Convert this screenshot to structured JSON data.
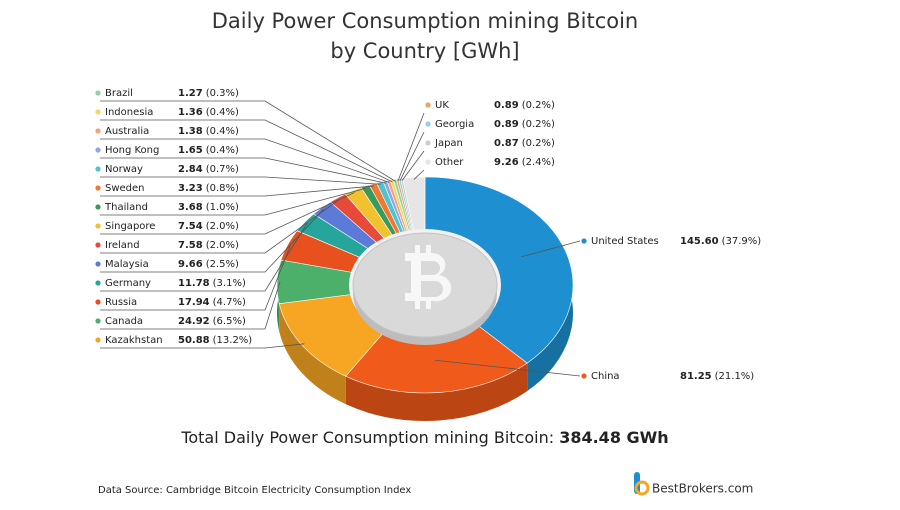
{
  "chart_data": {
    "type": "pie3d",
    "title": "Daily Power Consumption mining Bitcoin",
    "subtitle": "by Country [GWh]",
    "categories": [
      "United States",
      "China",
      "Kazakhstan",
      "Canada",
      "Russia",
      "Germany",
      "Malaysia",
      "Ireland",
      "Singapore",
      "Thailand",
      "Sweden",
      "Norway",
      "Hong Kong",
      "Australia",
      "Indonesia",
      "Brazil",
      "UK",
      "Georgia",
      "Japan",
      "Other"
    ],
    "values": [
      145.6,
      81.25,
      50.88,
      24.92,
      17.94,
      11.78,
      9.66,
      7.58,
      7.54,
      3.68,
      3.23,
      2.84,
      1.65,
      1.38,
      1.36,
      1.27,
      0.89,
      0.89,
      0.87,
      9.26
    ],
    "value_labels": [
      "145.60",
      "81.25",
      "50.88",
      "24.92",
      "17.94",
      "11.78",
      "9.66",
      "7.58",
      "7.54",
      "3.68",
      "3.23",
      "2.84",
      "1.65",
      "1.38",
      "1.36",
      "1.27",
      "0.89",
      "0.89",
      "0.87",
      "9.26"
    ],
    "percent_labels": [
      "(37.9%)",
      "(21.1%)",
      "(13.2%)",
      "(6.5%)",
      "(4.7%)",
      "(3.1%)",
      "(2.5%)",
      "(2.0%)",
      "(2.0%)",
      "(1.0%)",
      "(0.8%)",
      "(0.7%)",
      "(0.4%)",
      "(0.4%)",
      "(0.4%)",
      "(0.3%)",
      "(0.2%)",
      "(0.2%)",
      "(0.2%)",
      "(2.4%)"
    ],
    "colors": [
      "#1e8fd0",
      "#f05a1a",
      "#f6a623",
      "#4caf6a",
      "#e8501e",
      "#26a69a",
      "#5c7bd9",
      "#e84a3a",
      "#f2c12e",
      "#3a9a5b",
      "#f07830",
      "#4fc3d0",
      "#8fa8e0",
      "#f4a27a",
      "#f5d76e",
      "#8fd3a0",
      "#f0a060",
      "#90d0e8",
      "#cccccc",
      "#e6e6e6"
    ],
    "total_label": "Total Daily Power Consumption mining Bitcoin:",
    "total_value": "384.48 GWh",
    "source": "Data Source: Cambridge Bitcoin Electricity Consumption Index",
    "brand": "BestBrokers.com"
  }
}
